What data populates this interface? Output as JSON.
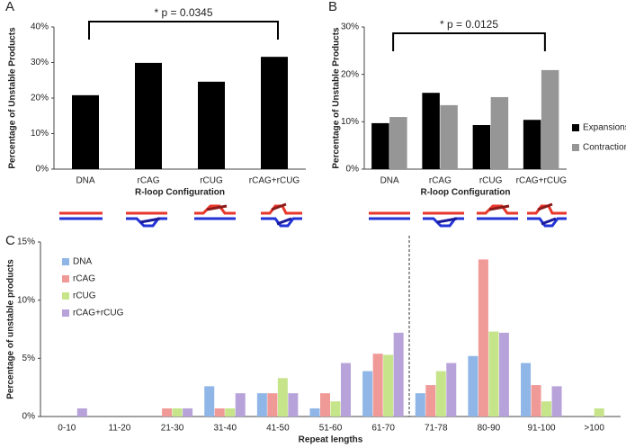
{
  "chart_data": [
    {
      "type": "bar",
      "label": "A",
      "annotation": "* p = 0.0345",
      "categories": [
        "DNA",
        "rCAG",
        "rCUG",
        "rCAG+rCUG"
      ],
      "values": [
        20.8,
        29.9,
        24.6,
        31.6
      ],
      "color": "#000000",
      "ylabel": "Percentage of Unstable Products",
      "xlabel": "R-loop Configuration",
      "ylim": [
        0,
        40
      ],
      "yticks": [
        {
          "value": 0,
          "label": "0%"
        },
        {
          "value": 10,
          "label": "10%"
        },
        {
          "value": 20,
          "label": "20%"
        },
        {
          "value": 30,
          "label": "30%"
        },
        {
          "value": 40,
          "label": "40%"
        }
      ]
    },
    {
      "type": "grouped_bar",
      "label": "B",
      "annotation": "* p = 0.0125",
      "categories": [
        "DNA",
        "rCAG",
        "rCUG",
        "rCAG+rCUG"
      ],
      "series": [
        {
          "name": "Expansions",
          "color": "#000000",
          "values": [
            9.7,
            16.1,
            9.3,
            10.4
          ]
        },
        {
          "name": "Contractions",
          "color": "#969696",
          "values": [
            11.0,
            13.5,
            15.2,
            20.9
          ]
        }
      ],
      "ylabel": "Percentage of Unstable Products",
      "xlabel": "R-loop Configuration",
      "ylim": [
        0,
        30
      ],
      "yticks": [
        {
          "value": 0,
          "label": "0%"
        },
        {
          "value": 10,
          "label": "10%"
        },
        {
          "value": 20,
          "label": "20%"
        },
        {
          "value": 30,
          "label": "30%"
        }
      ],
      "legend": "right"
    },
    {
      "type": "grouped_bar",
      "label": "C",
      "categories": [
        "0-10",
        "11-20",
        "21-30",
        "31-40",
        "41-50",
        "51-60",
        "61-70",
        "71-78",
        "80-90",
        "91-100",
        ">100"
      ],
      "series": [
        {
          "name": "DNA",
          "color": "#8fb6e6",
          "values": [
            0,
            0,
            0,
            2.6,
            2.0,
            0.7,
            3.9,
            2.0,
            5.2,
            4.6,
            0
          ]
        },
        {
          "name": "rCAG",
          "color": "#f09a98",
          "values": [
            0,
            0,
            0.7,
            0.7,
            2.0,
            2.0,
            5.4,
            2.7,
            13.5,
            2.7,
            0
          ]
        },
        {
          "name": "rCUG",
          "color": "#c6e48a",
          "values": [
            0,
            0,
            0.7,
            0.7,
            3.3,
            1.3,
            5.3,
            3.9,
            7.3,
            1.3,
            0.7
          ]
        },
        {
          "name": "rCAG+rCUG",
          "color": "#b7a3d9",
          "values": [
            0.7,
            0,
            0.7,
            2.0,
            2.0,
            4.6,
            7.2,
            4.6,
            7.2,
            2.6,
            0
          ]
        }
      ],
      "ylabel": "Percentage of unstable products",
      "xlabel": "Repeat lengths",
      "ylim": [
        0,
        15
      ],
      "yticks": [
        {
          "value": 0,
          "label": "0%"
        },
        {
          "value": 5,
          "label": "5%"
        },
        {
          "value": 10,
          "label": "10%"
        },
        {
          "value": 15,
          "label": "15%"
        }
      ],
      "legend": "upper left"
    }
  ]
}
